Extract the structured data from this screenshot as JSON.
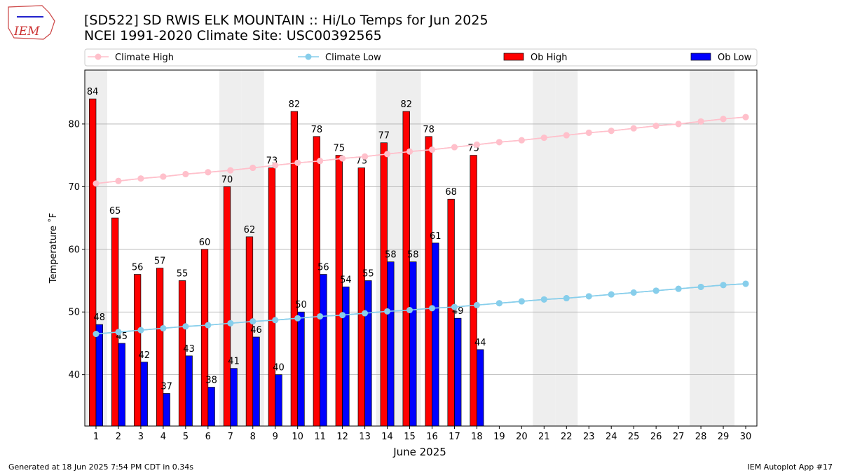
{
  "logo": "IEM",
  "footer": {
    "left": "Generated at 18 Jun 2025 7:54 PM CDT in 0.34s",
    "right": "IEM Autoplot App #17"
  },
  "chart_data": {
    "type": "bar",
    "title": [
      "[SD522] SD RWIS ELK MOUNTAIN :: Hi/Lo Temps for Jun 2025",
      "NCEI 1991-2020 Climate Site: USC00392565"
    ],
    "xlabel": "June 2025",
    "ylabel": "Temperature ˚F",
    "x": [
      1,
      2,
      3,
      4,
      5,
      6,
      7,
      8,
      9,
      10,
      11,
      12,
      13,
      14,
      15,
      16,
      17,
      18,
      19,
      20,
      21,
      22,
      23,
      24,
      25,
      26,
      27,
      28,
      29,
      30
    ],
    "xlim": [
      0.5,
      30.5
    ],
    "xticks": [
      1,
      2,
      3,
      4,
      5,
      6,
      7,
      8,
      9,
      10,
      11,
      12,
      13,
      14,
      15,
      16,
      17,
      18,
      19,
      20,
      21,
      22,
      23,
      24,
      25,
      26,
      27,
      28,
      29,
      30
    ],
    "ylim": [
      31.8,
      88.6
    ],
    "yticks": [
      40,
      50,
      60,
      70,
      80
    ],
    "grid": true,
    "legend": "top",
    "shaded_days": [
      1,
      7,
      8,
      14,
      15,
      21,
      22,
      28,
      29
    ],
    "shade_color": "#eeeeee",
    "series": [
      {
        "name": "Climate High",
        "type": "line",
        "color": "#ffc0cb",
        "values": [
          70.5,
          70.9,
          71.3,
          71.6,
          72.0,
          72.3,
          72.6,
          73.0,
          73.4,
          73.8,
          74.1,
          74.5,
          74.8,
          75.2,
          75.6,
          75.9,
          76.3,
          76.7,
          77.1,
          77.4,
          77.8,
          78.2,
          78.6,
          78.9,
          79.3,
          79.7,
          80.0,
          80.4,
          80.8,
          81.1
        ]
      },
      {
        "name": "Climate Low",
        "type": "line",
        "color": "#87ceeb",
        "values": [
          46.5,
          46.8,
          47.1,
          47.4,
          47.7,
          47.9,
          48.2,
          48.5,
          48.7,
          49.0,
          49.3,
          49.5,
          49.8,
          50.1,
          50.3,
          50.6,
          50.8,
          51.1,
          51.4,
          51.7,
          52.0,
          52.2,
          52.5,
          52.8,
          53.1,
          53.4,
          53.7,
          54.0,
          54.3,
          54.5
        ]
      },
      {
        "name": "Ob High",
        "type": "bar",
        "color": "#ff0000",
        "values": [
          84,
          65,
          56,
          57,
          55,
          60,
          70,
          62,
          73,
          82,
          78,
          75,
          73,
          77,
          82,
          78,
          68,
          75,
          null,
          null,
          null,
          null,
          null,
          null,
          null,
          null,
          null,
          null,
          null,
          null
        ]
      },
      {
        "name": "Ob Low",
        "type": "bar",
        "color": "#0000ff",
        "values": [
          48,
          45,
          42,
          37,
          43,
          38,
          41,
          46,
          40,
          50,
          56,
          54,
          55,
          58,
          58,
          61,
          49,
          44,
          null,
          null,
          null,
          null,
          null,
          null,
          null,
          null,
          null,
          null,
          null,
          null
        ]
      }
    ]
  }
}
